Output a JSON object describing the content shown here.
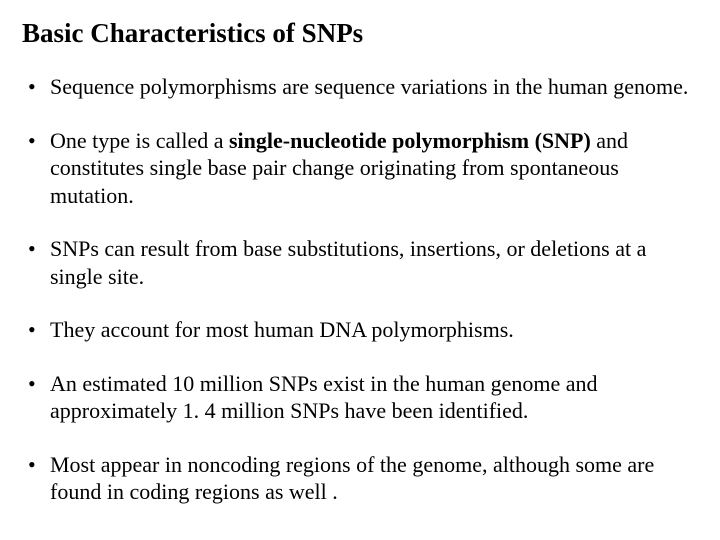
{
  "slide": {
    "title": "Basic Characteristics of SNPs",
    "title_fontsize": 27,
    "body_fontsize": 22,
    "bullets": [
      {
        "pre": "Sequence polymorphisms are sequence variations in the human genome.",
        "bold": "",
        "post": ""
      },
      {
        "pre": "One type is called a ",
        "bold": "single-nucleotide polymorphism (SNP)",
        "post": " and constitutes single base pair change originating from spontaneous mutation."
      },
      {
        "pre": "SNPs can result from base substitutions, insertions, or deletions at a single site.",
        "bold": "",
        "post": ""
      },
      {
        "pre": "They account for most human DNA polymorphisms.",
        "bold": "",
        "post": ""
      },
      {
        "pre": "An estimated 10 million SNPs exist in the human genome and approximately 1. 4 million SNPs have been identified.",
        "bold": "",
        "post": ""
      },
      {
        "pre": "Most appear in noncoding regions of the genome, although some are found in coding regions as well .",
        "bold": "",
        "post": ""
      }
    ],
    "colors": {
      "background": "#ffffff",
      "text": "#000000"
    }
  }
}
